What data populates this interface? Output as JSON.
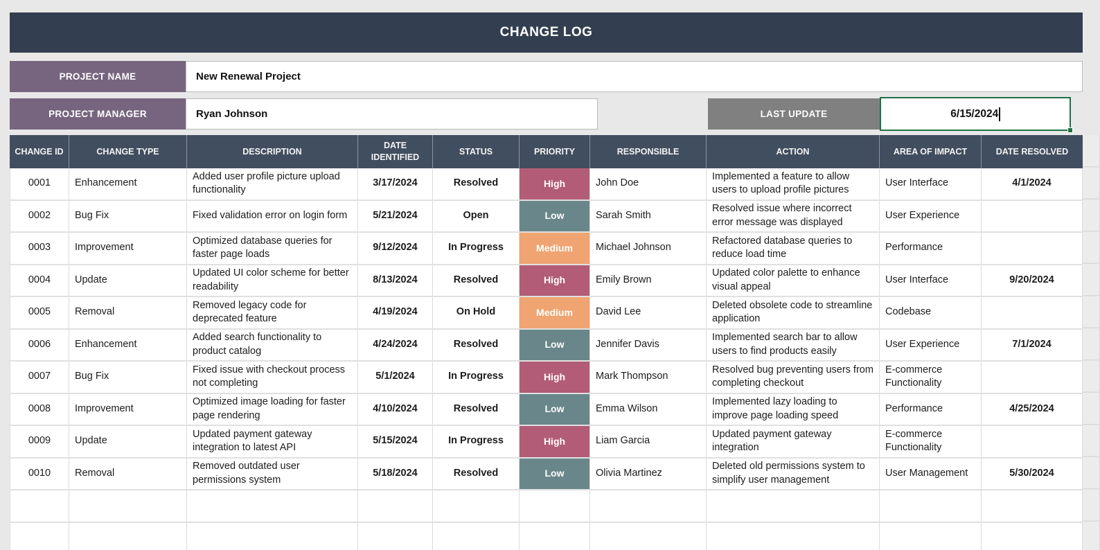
{
  "title": "CHANGE LOG",
  "fields": {
    "project_name_label": "PROJECT NAME",
    "project_name_value": "New Renewal Project",
    "project_manager_label": "PROJECT MANAGER",
    "project_manager_value": "Ryan Johnson",
    "last_update_label": "LAST UPDATE",
    "last_update_value": "6/15/2024"
  },
  "colors": {
    "page_bg": "#E9E8E8",
    "title_bg": "#333F50",
    "header_bg": "#414E5F",
    "label_purple": "#77657F",
    "label_gray": "#808080",
    "selection_green": "#1E7145",
    "priority_high": "#B25C77",
    "priority_medium": "#EFA471",
    "priority_low": "#69878A"
  },
  "table": {
    "columns": [
      "CHANGE ID",
      "CHANGE TYPE",
      "DESCRIPTION",
      "DATE IDENTIFIED",
      "STATUS",
      "PRIORITY",
      "RESPONSIBLE",
      "ACTION",
      "AREA OF IMPACT",
      "DATE RESOLVED"
    ],
    "empty_rows": 2,
    "rows": [
      {
        "id": "0001",
        "type": "Enhancement",
        "description": "Added user profile picture upload functionality",
        "date_identified": "3/17/2024",
        "status": "Resolved",
        "priority": "High",
        "responsible": "John Doe",
        "action": "Implemented a feature to allow users to upload profile pictures",
        "area": "User Interface",
        "date_resolved": "4/1/2024"
      },
      {
        "id": "0002",
        "type": "Bug Fix",
        "description": "Fixed validation error on login form",
        "date_identified": "5/21/2024",
        "status": "Open",
        "priority": "Low",
        "responsible": "Sarah Smith",
        "action": "Resolved issue where incorrect error message was displayed",
        "area": "User Experience",
        "date_resolved": ""
      },
      {
        "id": "0003",
        "type": "Improvement",
        "description": "Optimized database queries for faster page loads",
        "date_identified": "9/12/2024",
        "status": "In Progress",
        "priority": "Medium",
        "responsible": "Michael Johnson",
        "action": "Refactored database queries to reduce load time",
        "area": "Performance",
        "date_resolved": ""
      },
      {
        "id": "0004",
        "type": "Update",
        "description": "Updated UI color scheme for better readability",
        "date_identified": "8/13/2024",
        "status": "Resolved",
        "priority": "High",
        "responsible": "Emily Brown",
        "action": "Updated color palette to enhance visual appeal",
        "area": "User Interface",
        "date_resolved": "9/20/2024"
      },
      {
        "id": "0005",
        "type": "Removal",
        "description": "Removed legacy code for deprecated feature",
        "date_identified": "4/19/2024",
        "status": "On Hold",
        "priority": "Medium",
        "responsible": "David Lee",
        "action": "Deleted obsolete code to streamline application",
        "area": "Codebase",
        "date_resolved": ""
      },
      {
        "id": "0006",
        "type": "Enhancement",
        "description": "Added search functionality to product catalog",
        "date_identified": "4/24/2024",
        "status": "Resolved",
        "priority": "Low",
        "responsible": "Jennifer Davis",
        "action": "Implemented search bar to allow users to find products easily",
        "area": "User Experience",
        "date_resolved": "7/1/2024"
      },
      {
        "id": "0007",
        "type": "Bug Fix",
        "description": "Fixed issue with checkout process not completing",
        "date_identified": "5/1/2024",
        "status": "In Progress",
        "priority": "High",
        "responsible": "Mark Thompson",
        "action": "Resolved bug preventing users from completing checkout",
        "area": "E-commerce Functionality",
        "date_resolved": ""
      },
      {
        "id": "0008",
        "type": "Improvement",
        "description": "Optimized image loading for faster page rendering",
        "date_identified": "4/10/2024",
        "status": "Resolved",
        "priority": "Low",
        "responsible": "Emma Wilson",
        "action": "Implemented lazy loading to improve page loading speed",
        "area": "Performance",
        "date_resolved": "4/25/2024"
      },
      {
        "id": "0009",
        "type": "Update",
        "description": "Updated payment gateway integration to latest API",
        "date_identified": "5/15/2024",
        "status": "In Progress",
        "priority": "High",
        "responsible": "Liam Garcia",
        "action": "Updated payment gateway integration",
        "area": "E-commerce Functionality",
        "date_resolved": ""
      },
      {
        "id": "0010",
        "type": "Removal",
        "description": "Removed outdated user permissions system",
        "date_identified": "5/18/2024",
        "status": "Resolved",
        "priority": "Low",
        "responsible": "Olivia Martinez",
        "action": "Deleted old permissions system to simplify user management",
        "area": "User Management",
        "date_resolved": "5/30/2024"
      }
    ]
  }
}
